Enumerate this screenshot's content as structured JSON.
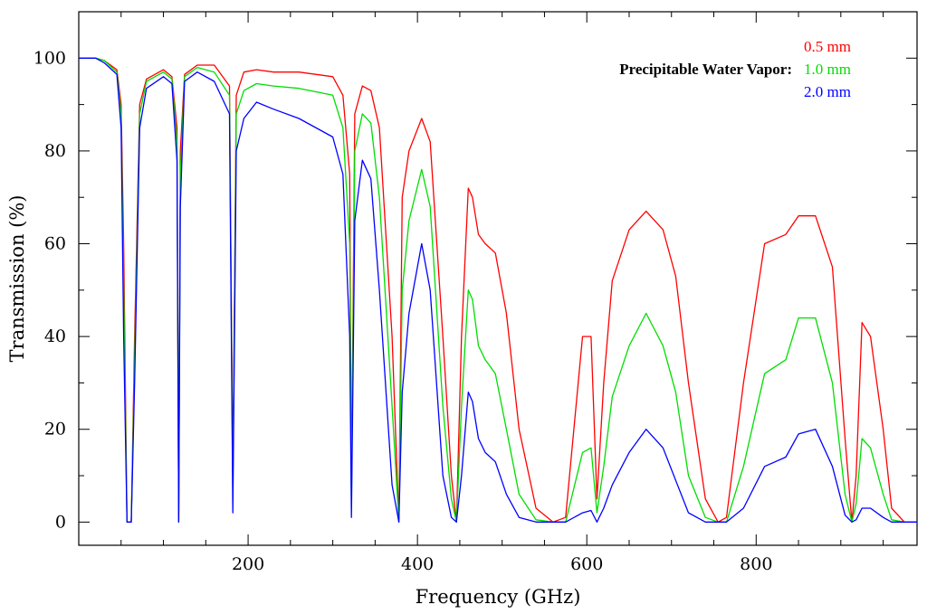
{
  "chart_data": {
    "type": "line",
    "xlabel": "Frequency (GHz)",
    "ylabel": "Transmission (%)",
    "xlim": [
      0,
      990
    ],
    "ylim": [
      -5,
      110
    ],
    "x_ticks": [
      200,
      400,
      600,
      800
    ],
    "x_tick_labels": [
      "200",
      "400",
      "600",
      "800"
    ],
    "y_ticks": [
      0,
      20,
      40,
      60,
      80,
      100
    ],
    "y_tick_labels": [
      "0",
      "20",
      "40",
      "60",
      "80",
      "100"
    ],
    "grid": false,
    "legend": {
      "title": "Precipitable Water Vapor:",
      "placement": "top-right",
      "entries": [
        {
          "label": "0.5 mm",
          "color": "#ff0000"
        },
        {
          "label": "1.0 mm",
          "color": "#00dd00"
        },
        {
          "label": "2.0 mm",
          "color": "#0000ff"
        }
      ]
    },
    "series": [
      {
        "name": "0.5 mm",
        "color": "#ff0000",
        "x": [
          0,
          20,
          30,
          45,
          50,
          53,
          57,
          62,
          66,
          72,
          80,
          100,
          110,
          116,
          118,
          120,
          125,
          140,
          160,
          178,
          182,
          186,
          195,
          210,
          230,
          260,
          300,
          312,
          320,
          322,
          326,
          335,
          345,
          355,
          370,
          378,
          382,
          390,
          405,
          415,
          430,
          440,
          446,
          452,
          460,
          465,
          472,
          480,
          492,
          505,
          520,
          540,
          560,
          575,
          595,
          605,
          612,
          620,
          630,
          650,
          670,
          690,
          705,
          720,
          740,
          755,
          765,
          785,
          810,
          835,
          850,
          870,
          890,
          905,
          913,
          918,
          925,
          935,
          950,
          960,
          975,
          990
        ],
        "values": [
          100,
          100,
          99.5,
          97.5,
          90,
          60,
          0,
          0,
          40,
          90,
          95.5,
          97.5,
          96,
          85,
          0,
          80,
          96.5,
          98.5,
          98.5,
          94,
          10,
          92,
          97,
          97.5,
          97,
          97,
          96,
          92,
          75,
          5,
          88,
          94,
          93,
          85,
          40,
          0,
          70,
          80,
          87,
          82,
          40,
          10,
          0,
          40,
          72,
          70,
          62,
          60,
          58,
          45,
          20,
          3,
          0,
          1,
          40,
          40,
          5,
          30,
          52,
          63,
          67,
          63,
          53,
          30,
          5,
          0,
          1,
          30,
          60,
          62,
          66,
          66,
          55,
          18,
          0,
          10,
          43,
          40,
          20,
          3,
          0,
          0
        ]
      },
      {
        "name": "1.0 mm",
        "color": "#00dd00",
        "x": [
          0,
          20,
          30,
          45,
          50,
          53,
          57,
          62,
          66,
          72,
          80,
          100,
          110,
          116,
          118,
          120,
          125,
          140,
          160,
          178,
          182,
          186,
          195,
          210,
          230,
          260,
          300,
          312,
          320,
          322,
          326,
          335,
          345,
          355,
          370,
          378,
          382,
          390,
          405,
          415,
          430,
          440,
          446,
          452,
          460,
          465,
          472,
          480,
          492,
          505,
          520,
          540,
          560,
          575,
          595,
          605,
          612,
          620,
          630,
          650,
          670,
          690,
          705,
          720,
          740,
          755,
          765,
          785,
          810,
          835,
          850,
          870,
          890,
          905,
          913,
          918,
          925,
          935,
          950,
          960,
          975,
          990
        ],
        "values": [
          100,
          100,
          99.5,
          97,
          88,
          50,
          0,
          0,
          35,
          88,
          95,
          97,
          95.5,
          82,
          0,
          75,
          96,
          98,
          97,
          92,
          6,
          88,
          93,
          94.5,
          94,
          93.5,
          92,
          85,
          60,
          3,
          80,
          88,
          86,
          70,
          25,
          0,
          50,
          65,
          76,
          68,
          25,
          5,
          0,
          25,
          50,
          48,
          38,
          35,
          32,
          20,
          6,
          0.5,
          0,
          0,
          15,
          16,
          2,
          12,
          27,
          38,
          45,
          38,
          28,
          10,
          1,
          0,
          0,
          12,
          32,
          35,
          44,
          44,
          30,
          6,
          0,
          4,
          18,
          16,
          6,
          0.5,
          0,
          0
        ]
      },
      {
        "name": "2.0 mm",
        "color": "#0000ff",
        "x": [
          0,
          20,
          30,
          45,
          50,
          53,
          57,
          62,
          66,
          72,
          80,
          100,
          110,
          116,
          118,
          120,
          125,
          140,
          160,
          178,
          182,
          186,
          195,
          210,
          230,
          260,
          300,
          312,
          320,
          322,
          326,
          335,
          345,
          355,
          370,
          378,
          382,
          390,
          405,
          415,
          430,
          440,
          446,
          452,
          460,
          465,
          472,
          480,
          492,
          505,
          520,
          540,
          560,
          575,
          595,
          605,
          612,
          620,
          630,
          650,
          670,
          690,
          705,
          720,
          740,
          755,
          765,
          785,
          810,
          835,
          850,
          870,
          890,
          905,
          913,
          918,
          925,
          935,
          950,
          960,
          975,
          990
        ],
        "values": [
          100,
          100,
          99,
          96.5,
          85,
          40,
          0,
          0,
          30,
          85,
          93.5,
          96,
          94.5,
          78,
          0,
          68,
          95,
          97,
          95,
          88,
          2,
          80,
          87,
          90.5,
          89,
          87,
          83,
          75,
          40,
          1,
          65,
          78,
          74,
          50,
          8,
          0,
          28,
          45,
          60,
          50,
          10,
          1,
          0,
          10,
          28,
          26,
          18,
          15,
          13,
          6,
          1,
          0,
          0,
          0,
          2,
          2.5,
          0,
          3,
          8,
          15,
          20,
          16,
          9,
          2,
          0,
          0,
          0,
          3,
          12,
          14,
          19,
          20,
          12,
          1.5,
          0,
          0.5,
          3,
          3,
          1,
          0,
          0,
          0
        ]
      }
    ]
  }
}
